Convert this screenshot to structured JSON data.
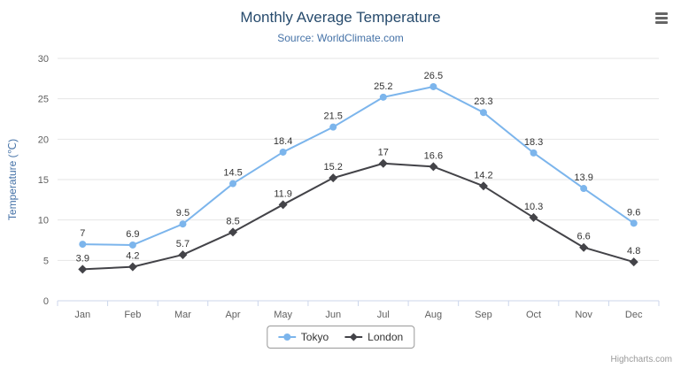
{
  "header": {
    "title": "Monthly Average Temperature",
    "subtitle": "Source: WorldClimate.com"
  },
  "menu": {
    "icon": "hamburger-icon"
  },
  "legend": [
    {
      "name": "Tokyo",
      "color": "#7cb5ec",
      "marker": "circle"
    },
    {
      "name": "London",
      "color": "#434348",
      "marker": "diamond"
    }
  ],
  "credits": "Highcharts.com",
  "chart_data": {
    "type": "line",
    "title": "Monthly Average Temperature",
    "subtitle": "Source: WorldClimate.com",
    "categories": [
      "Jan",
      "Feb",
      "Mar",
      "Apr",
      "May",
      "Jun",
      "Jul",
      "Aug",
      "Sep",
      "Oct",
      "Nov",
      "Dec"
    ],
    "series": [
      {
        "name": "Tokyo",
        "color": "#7cb5ec",
        "marker": "circle",
        "values": [
          7,
          6.9,
          9.5,
          14.5,
          18.4,
          21.5,
          25.2,
          26.5,
          23.3,
          18.3,
          13.9,
          9.6
        ]
      },
      {
        "name": "London",
        "color": "#434348",
        "marker": "diamond",
        "values": [
          3.9,
          4.2,
          5.7,
          8.5,
          11.9,
          15.2,
          17,
          16.6,
          14.2,
          10.3,
          6.6,
          4.8
        ]
      }
    ],
    "xlabel": "",
    "ylabel": "Temperature (℃)",
    "ylim": [
      0,
      30
    ],
    "yticks": [
      0,
      5,
      10,
      15,
      20,
      25,
      30
    ],
    "grid": true,
    "data_labels": true,
    "legend_position": "bottom",
    "colors": {
      "grid_line": "#e6e6e6",
      "axis_line": "#ccd6eb",
      "axis_label": "#606060",
      "axis_title": "#4572a7",
      "data_label": "#333333"
    }
  }
}
